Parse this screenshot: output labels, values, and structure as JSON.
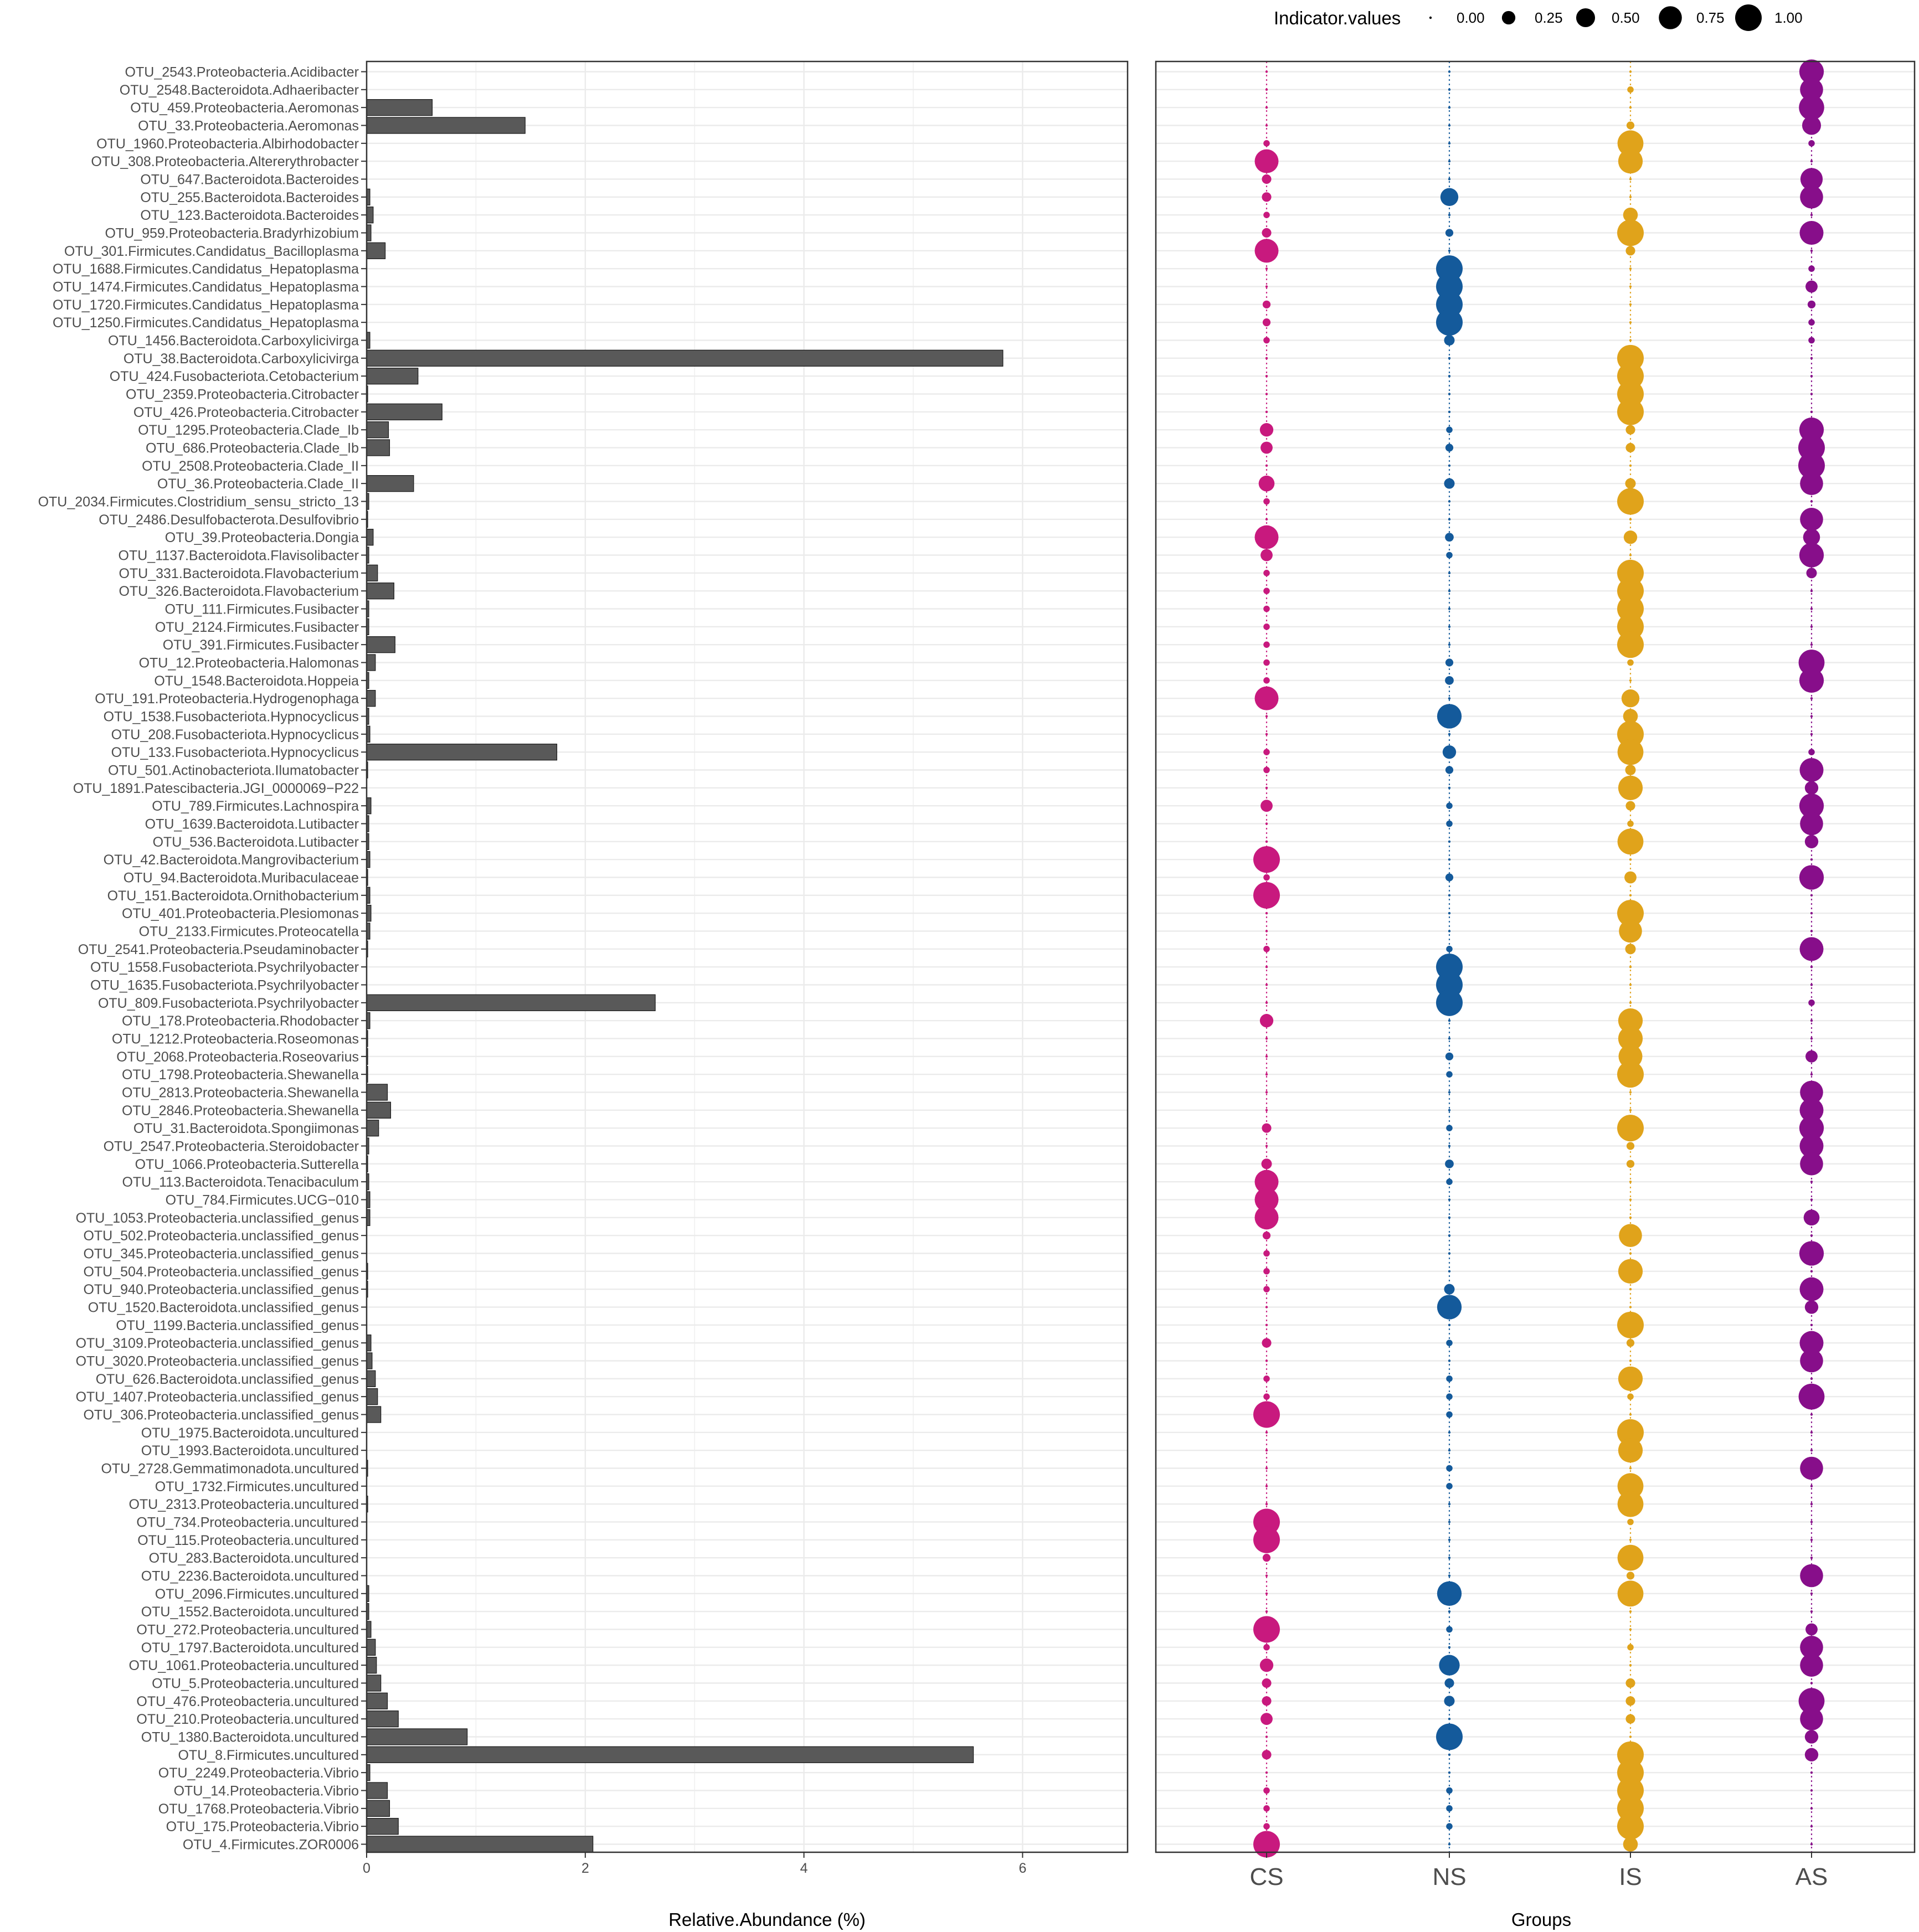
{
  "chart_data": [
    {
      "type": "bar",
      "orientation": "horizontal",
      "xlabel": "Relative.Abundance (%)",
      "ylabel": "",
      "xlim": [
        0,
        7
      ],
      "xticks": [
        0,
        2,
        4,
        6
      ],
      "bar_color": "#595959",
      "categories": [
        "OTU_2543.Proteobacteria.Acidibacter",
        "OTU_2548.Bacteroidota.Adhaeribacter",
        "OTU_459.Proteobacteria.Aeromonas",
        "OTU_33.Proteobacteria.Aeromonas",
        "OTU_1960.Proteobacteria.Albirhodobacter",
        "OTU_308.Proteobacteria.Altererythrobacter",
        "OTU_647.Bacteroidota.Bacteroides",
        "OTU_255.Bacteroidota.Bacteroides",
        "OTU_123.Bacteroidota.Bacteroides",
        "OTU_959.Proteobacteria.Bradyrhizobium",
        "OTU_301.Firmicutes.Candidatus_Bacilloplasma",
        "OTU_1688.Firmicutes.Candidatus_Hepatoplasma",
        "OTU_1474.Firmicutes.Candidatus_Hepatoplasma",
        "OTU_1720.Firmicutes.Candidatus_Hepatoplasma",
        "OTU_1250.Firmicutes.Candidatus_Hepatoplasma",
        "OTU_1456.Bacteroidota.Carboxylicivirga",
        "OTU_38.Bacteroidota.Carboxylicivirga",
        "OTU_424.Fusobacteriota.Cetobacterium",
        "OTU_2359.Proteobacteria.Citrobacter",
        "OTU_426.Proteobacteria.Citrobacter",
        "OTU_1295.Proteobacteria.Clade_Ib",
        "OTU_686.Proteobacteria.Clade_Ib",
        "OTU_2508.Proteobacteria.Clade_II",
        "OTU_36.Proteobacteria.Clade_II",
        "OTU_2034.Firmicutes.Clostridium_sensu_stricto_13",
        "OTU_2486.Desulfobacterota.Desulfovibrio",
        "OTU_39.Proteobacteria.Dongia",
        "OTU_1137.Bacteroidota.Flavisolibacter",
        "OTU_331.Bacteroidota.Flavobacterium",
        "OTU_326.Bacteroidota.Flavobacterium",
        "OTU_111.Firmicutes.Fusibacter",
        "OTU_2124.Firmicutes.Fusibacter",
        "OTU_391.Firmicutes.Fusibacter",
        "OTU_12.Proteobacteria.Halomonas",
        "OTU_1548.Bacteroidota.Hoppeia",
        "OTU_191.Proteobacteria.Hydrogenophaga",
        "OTU_1538.Fusobacteriota.Hypnocyclicus",
        "OTU_208.Fusobacteriota.Hypnocyclicus",
        "OTU_133.Fusobacteriota.Hypnocyclicus",
        "OTU_501.Actinobacteriota.Ilumatobacter",
        "OTU_1891.Patescibacteria.JGI_0000069−P22",
        "OTU_789.Firmicutes.Lachnospira",
        "OTU_1639.Bacteroidota.Lutibacter",
        "OTU_536.Bacteroidota.Lutibacter",
        "OTU_42.Bacteroidota.Mangrovibacterium",
        "OTU_94.Bacteroidota.Muribaculaceae",
        "OTU_151.Bacteroidota.Ornithobacterium",
        "OTU_401.Proteobacteria.Plesiomonas",
        "OTU_2133.Firmicutes.Proteocatella",
        "OTU_2541.Proteobacteria.Pseudaminobacter",
        "OTU_1558.Fusobacteriota.Psychrilyobacter",
        "OTU_1635.Fusobacteriota.Psychrilyobacter",
        "OTU_809.Fusobacteriota.Psychrilyobacter",
        "OTU_178.Proteobacteria.Rhodobacter",
        "OTU_1212.Proteobacteria.Roseomonas",
        "OTU_2068.Proteobacteria.Roseovarius",
        "OTU_1798.Proteobacteria.Shewanella",
        "OTU_2813.Proteobacteria.Shewanella",
        "OTU_2846.Proteobacteria.Shewanella",
        "OTU_31.Bacteroidota.Spongiimonas",
        "OTU_2547.Proteobacteria.Steroidobacter",
        "OTU_1066.Proteobacteria.Sutterella",
        "OTU_113.Bacteroidota.Tenacibaculum",
        "OTU_784.Firmicutes.UCG−010",
        "OTU_1053.Proteobacteria.unclassified_genus",
        "OTU_502.Proteobacteria.unclassified_genus",
        "OTU_345.Proteobacteria.unclassified_genus",
        "OTU_504.Proteobacteria.unclassified_genus",
        "OTU_940.Proteobacteria.unclassified_genus",
        "OTU_1520.Bacteroidota.unclassified_genus",
        "OTU_1199.Bacteria.unclassified_genus",
        "OTU_3109.Proteobacteria.unclassified_genus",
        "OTU_3020.Proteobacteria.unclassified_genus",
        "OTU_626.Bacteroidota.unclassified_genus",
        "OTU_1407.Proteobacteria.unclassified_genus",
        "OTU_306.Proteobacteria.unclassified_genus",
        "OTU_1975.Bacteroidota.uncultured",
        "OTU_1993.Bacteroidota.uncultured",
        "OTU_2728.Gemmatimonadota.uncultured",
        "OTU_1732.Firmicutes.uncultured",
        "OTU_2313.Proteobacteria.uncultured",
        "OTU_734.Proteobacteria.uncultured",
        "OTU_115.Proteobacteria.uncultured",
        "OTU_283.Bacteroidota.uncultured",
        "OTU_2236.Bacteroidota.uncultured",
        "OTU_2096.Firmicutes.uncultured",
        "OTU_1552.Bacteroidota.uncultured",
        "OTU_272.Proteobacteria.uncultured",
        "OTU_1797.Bacteroidota.uncultured",
        "OTU_1061.Proteobacteria.uncultured",
        "OTU_5.Proteobacteria.uncultured",
        "OTU_476.Proteobacteria.uncultured",
        "OTU_210.Proteobacteria.uncultured",
        "OTU_1380.Bacteroidota.uncultured",
        "OTU_8.Firmicutes.uncultured",
        "OTU_2249.Proteobacteria.Vibrio",
        "OTU_14.Proteobacteria.Vibrio",
        "OTU_1768.Proteobacteria.Vibrio",
        "OTU_175.Proteobacteria.Vibrio",
        "OTU_4.Firmicutes.ZOR0006"
      ],
      "values": [
        0.0,
        0.0,
        0.6,
        1.45,
        0.0,
        0.0,
        0.0,
        0.03,
        0.06,
        0.04,
        0.17,
        0.0,
        0.0,
        0.0,
        0.0,
        0.03,
        5.82,
        0.47,
        0.01,
        0.69,
        0.2,
        0.21,
        0.0,
        0.43,
        0.02,
        0.01,
        0.06,
        0.02,
        0.1,
        0.25,
        0.02,
        0.02,
        0.26,
        0.08,
        0.02,
        0.08,
        0.02,
        0.03,
        1.74,
        0.01,
        0.0,
        0.04,
        0.02,
        0.02,
        0.03,
        0.01,
        0.03,
        0.04,
        0.03,
        0.01,
        0.0,
        0.0,
        2.64,
        0.03,
        0.01,
        0.01,
        0.01,
        0.19,
        0.22,
        0.11,
        0.02,
        0.01,
        0.02,
        0.03,
        0.03,
        0.0,
        0.0,
        0.01,
        0.01,
        0.0,
        0.0,
        0.04,
        0.05,
        0.08,
        0.1,
        0.13,
        0.0,
        0.0,
        0.01,
        0.0,
        0.01,
        0.0,
        0.0,
        0.0,
        0.0,
        0.02,
        0.02,
        0.04,
        0.08,
        0.09,
        0.13,
        0.19,
        0.29,
        0.92,
        5.55,
        0.03,
        0.19,
        0.21,
        0.29,
        2.07
      ]
    },
    {
      "type": "scatter",
      "subtype": "bubble",
      "xlabel": "Groups",
      "groups": [
        "CS",
        "NS",
        "IS",
        "AS"
      ],
      "colors": {
        "CS": "#c8197e",
        "NS": "#145a9b",
        "IS": "#e0a31b",
        "AS": "#870e8a"
      },
      "size_legend": {
        "title": "Indicator.values",
        "labels": [
          "0.00",
          "0.25",
          "0.50",
          "0.75",
          "1.00"
        ],
        "values": [
          0.0,
          0.25,
          0.5,
          0.75,
          1.0
        ]
      },
      "indicator_values": {
        "CS": [
          0.0,
          0.0,
          0.0,
          0.0,
          0.05,
          0.8,
          0.12,
          0.12,
          0.05,
          0.12,
          0.8,
          0.0,
          0.0,
          0.08,
          0.08,
          0.05,
          0.0,
          0.0,
          0.0,
          0.0,
          0.25,
          0.2,
          0.0,
          0.35,
          0.05,
          0.0,
          0.8,
          0.2,
          0.05,
          0.05,
          0.05,
          0.05,
          0.05,
          0.05,
          0.05,
          0.8,
          0.0,
          0.0,
          0.05,
          0.05,
          0.0,
          0.2,
          0.0,
          0.0,
          1.0,
          0.05,
          1.0,
          0.0,
          0.0,
          0.05,
          0.0,
          0.0,
          0.0,
          0.25,
          0.0,
          0.0,
          0.0,
          0.0,
          0.0,
          0.12,
          0.0,
          0.15,
          0.8,
          0.8,
          0.8,
          0.08,
          0.05,
          0.05,
          0.05,
          0.0,
          0.0,
          0.12,
          0.0,
          0.05,
          0.05,
          1.0,
          0.0,
          0.0,
          0.0,
          0.0,
          0.0,
          1.0,
          1.0,
          0.08,
          0.0,
          0.0,
          0.0,
          1.0,
          0.05,
          0.25,
          0.12,
          0.12,
          0.2,
          0.0,
          0.12,
          0.0,
          0.05,
          0.05,
          0.05,
          1.0
        ],
        "NS": [
          0.0,
          0.0,
          0.0,
          0.0,
          0.0,
          0.0,
          0.0,
          0.45,
          0.0,
          0.08,
          0.0,
          1.0,
          1.0,
          1.0,
          1.0,
          0.15,
          0.0,
          0.0,
          0.0,
          0.0,
          0.05,
          0.08,
          0.0,
          0.15,
          0.0,
          0.0,
          0.1,
          0.05,
          0.0,
          0.0,
          0.0,
          0.0,
          0.0,
          0.08,
          0.1,
          0.0,
          0.85,
          0.0,
          0.25,
          0.08,
          0.0,
          0.05,
          0.05,
          0.0,
          0.0,
          0.08,
          0.0,
          0.0,
          0.0,
          0.05,
          1.0,
          1.0,
          1.0,
          0.0,
          0.0,
          0.08,
          0.05,
          0.0,
          0.0,
          0.05,
          0.0,
          0.1,
          0.05,
          0.0,
          0.0,
          0.0,
          0.0,
          0.0,
          0.15,
          0.85,
          0.0,
          0.05,
          0.0,
          0.05,
          0.05,
          0.05,
          0.0,
          0.0,
          0.05,
          0.05,
          0.0,
          0.0,
          0.0,
          0.0,
          0.0,
          0.85,
          0.0,
          0.05,
          0.0,
          0.6,
          0.12,
          0.15,
          0.0,
          1.0,
          0.0,
          0.0,
          0.05,
          0.05,
          0.05,
          0.0
        ],
        "IS": [
          0.0,
          0.05,
          0.0,
          0.08,
          0.95,
          0.85,
          0.0,
          0.0,
          0.3,
          1.0,
          0.12,
          0.0,
          0.0,
          0.0,
          0.0,
          0.0,
          1.0,
          1.0,
          1.0,
          1.0,
          0.12,
          0.12,
          0.0,
          0.15,
          1.0,
          0.0,
          0.25,
          0.0,
          1.0,
          1.0,
          1.0,
          1.0,
          1.0,
          0.05,
          0.0,
          0.45,
          0.3,
          1.0,
          0.95,
          0.15,
          0.85,
          0.12,
          0.05,
          0.95,
          0.0,
          0.2,
          0.0,
          1.0,
          0.75,
          0.15,
          0.0,
          0.0,
          0.0,
          0.85,
          0.85,
          0.8,
          1.0,
          0.0,
          0.0,
          1.0,
          0.08,
          0.08,
          0.0,
          0.0,
          0.0,
          0.75,
          0.0,
          0.85,
          0.0,
          0.0,
          1.0,
          0.08,
          0.0,
          0.85,
          0.05,
          0.0,
          1.0,
          0.85,
          0.0,
          0.95,
          0.95,
          0.05,
          0.0,
          0.95,
          0.08,
          0.95,
          0.0,
          0.0,
          0.05,
          0.0,
          0.12,
          0.12,
          0.12,
          0.0,
          1.0,
          1.0,
          1.0,
          1.0,
          1.0,
          0.3
        ],
        "AS": [
          0.85,
          0.75,
          0.9,
          0.5,
          0.05,
          0.0,
          0.7,
          0.75,
          0.0,
          0.8,
          0.0,
          0.05,
          0.2,
          0.08,
          0.05,
          0.05,
          0.0,
          0.0,
          0.0,
          0.0,
          0.85,
          1.0,
          1.0,
          0.75,
          0.0,
          0.75,
          0.4,
          0.85,
          0.15,
          0.0,
          0.0,
          0.0,
          0.0,
          0.95,
          0.85,
          0.0,
          0.0,
          0.0,
          0.05,
          0.8,
          0.25,
          0.85,
          0.75,
          0.25,
          0.0,
          0.85,
          0.0,
          0.0,
          0.0,
          0.8,
          0.0,
          0.0,
          0.05,
          0.0,
          0.0,
          0.2,
          0.0,
          0.75,
          0.8,
          0.85,
          0.8,
          0.75,
          0.0,
          0.0,
          0.35,
          0.0,
          0.85,
          0.0,
          0.8,
          0.25,
          0.0,
          0.8,
          0.75,
          0.0,
          0.95,
          0.0,
          0.0,
          0.0,
          0.75,
          0.0,
          0.0,
          0.0,
          0.0,
          0.0,
          0.75,
          0.0,
          0.0,
          0.2,
          0.75,
          0.75,
          0.0,
          0.95,
          0.75,
          0.25,
          0.25,
          0.0,
          0.0,
          0.0,
          0.0,
          0.0
        ]
      }
    }
  ]
}
